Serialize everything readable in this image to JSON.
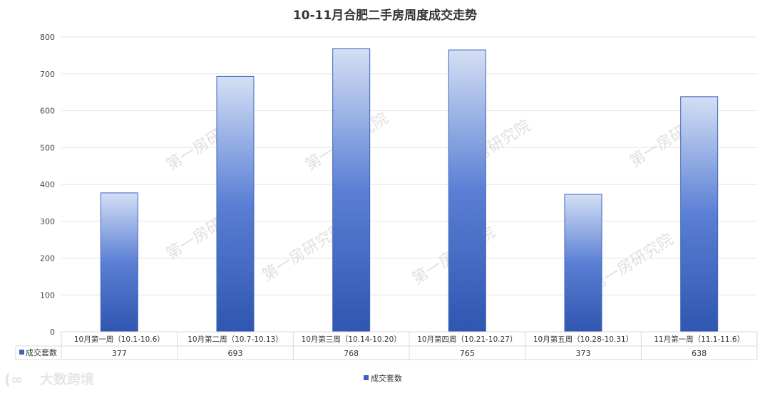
{
  "chart_data": {
    "type": "bar",
    "title": "10-11月合肥二手房周度成交走势",
    "categories": [
      "10月第一周（10.1-10.6）",
      "10月第二周（10.7-10.13）",
      "10月第三周（10.14-10.20）",
      "10月第四周（10.21-10.27）",
      "10月第五周（10.28-10.31）",
      "11月第一周（11.1-11.6）"
    ],
    "series": [
      {
        "name": "成交套数",
        "values": [
          377,
          693,
          768,
          765,
          373,
          638
        ]
      }
    ],
    "ylim": [
      0,
      800
    ],
    "yticks": [
      0,
      100,
      200,
      300,
      400,
      500,
      600,
      700,
      800
    ],
    "grid": true,
    "legend": "bottom",
    "data_table": true,
    "colors": {
      "bar_top": "#d4dff4",
      "bar_bottom": "#2f56b0",
      "bar_edge": "#3d63c0",
      "grid": "#e3e3e3"
    }
  },
  "watermark": "第一房研究院",
  "logo": "大数跨境"
}
